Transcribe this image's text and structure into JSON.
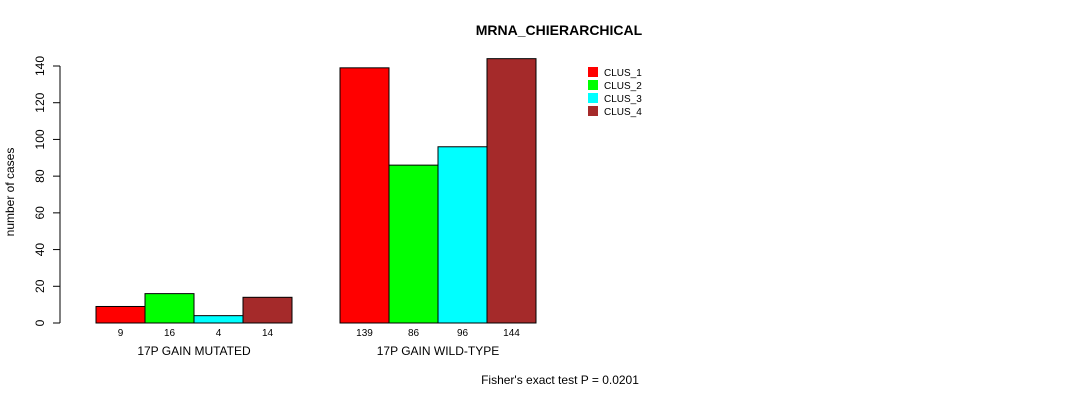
{
  "chart_data": {
    "type": "bar",
    "title": "MRNA_CHIERARCHICAL",
    "ylabel": "number of cases",
    "xlabel": "",
    "ylim": [
      0,
      140
    ],
    "yticks": [
      0,
      20,
      40,
      60,
      80,
      100,
      120,
      140
    ],
    "groups": [
      "17P GAIN MUTATED",
      "17P GAIN WILD-TYPE"
    ],
    "series": [
      {
        "name": "CLUS_1",
        "color": "#ff0000",
        "values": [
          9,
          139
        ]
      },
      {
        "name": "CLUS_2",
        "color": "#00ff00",
        "values": [
          16,
          86
        ]
      },
      {
        "name": "CLUS_3",
        "color": "#00ffff",
        "values": [
          4,
          96
        ]
      },
      {
        "name": "CLUS_4",
        "color": "#a52a2a",
        "values": [
          14,
          144
        ]
      }
    ],
    "footnote": "Fisher's exact test P = 0.0201",
    "legend_position": "top-right"
  }
}
